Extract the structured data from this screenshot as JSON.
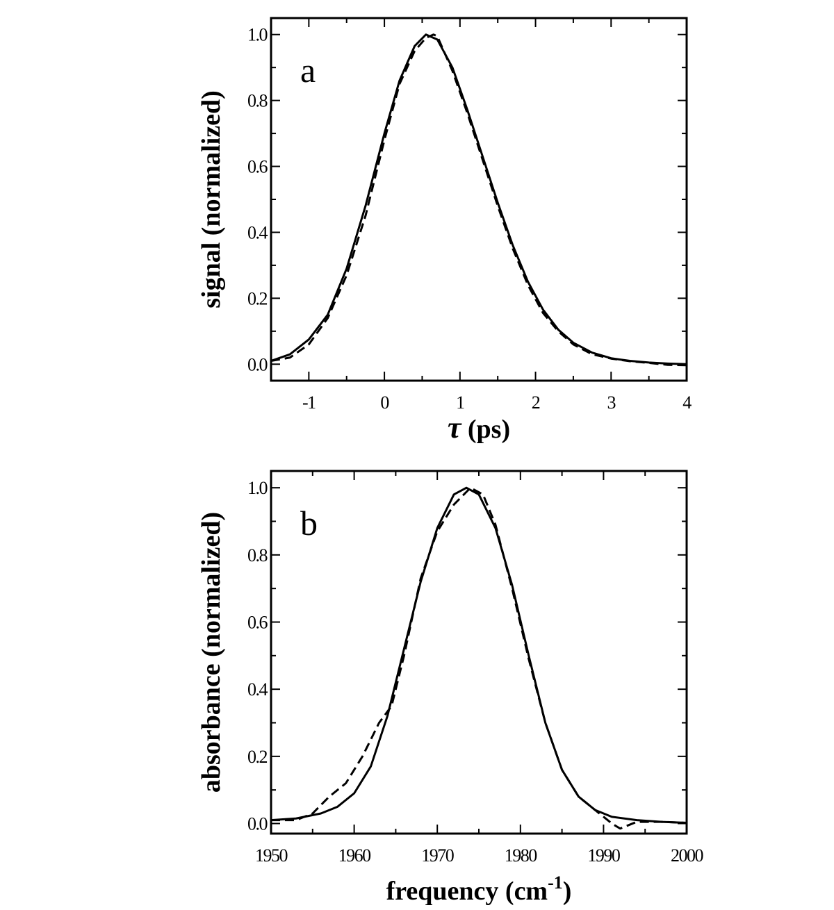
{
  "chart_data": [
    {
      "type": "line",
      "panel_label": "a",
      "xlabel_symbol": "τ",
      "xlabel_unit": " (ps)",
      "ylabel": "signal (normalized)",
      "xlim": [
        -1.5,
        4
      ],
      "ylim": [
        -0.05,
        1.05
      ],
      "xticks": [
        -1,
        0,
        1,
        2,
        3,
        4
      ],
      "xtick_labels": [
        "-1",
        "0",
        "1",
        "2",
        "3",
        "4"
      ],
      "yticks": [
        0.0,
        0.2,
        0.4,
        0.6,
        0.8,
        1.0
      ],
      "ytick_labels": [
        "0.0",
        "0.2",
        "0.4",
        "0.6",
        "0.8",
        "1.0"
      ],
      "x_minor_step": 0.5,
      "y_minor_step": 0.1,
      "grid": false,
      "legend": "none",
      "series": [
        {
          "style": "solid",
          "x": [
            -1.5,
            -1.25,
            -1.0,
            -0.75,
            -0.5,
            -0.25,
            0.0,
            0.2,
            0.4,
            0.55,
            0.7,
            0.9,
            1.1,
            1.3,
            1.5,
            1.7,
            1.9,
            2.1,
            2.3,
            2.5,
            2.75,
            3.0,
            3.25,
            3.5,
            3.75,
            4.0
          ],
          "y": [
            0.01,
            0.03,
            0.075,
            0.15,
            0.29,
            0.48,
            0.7,
            0.86,
            0.965,
            1.0,
            0.985,
            0.9,
            0.77,
            0.63,
            0.49,
            0.36,
            0.25,
            0.165,
            0.105,
            0.065,
            0.035,
            0.018,
            0.01,
            0.005,
            0.002,
            0.0
          ]
        },
        {
          "style": "dashed",
          "x": [
            -1.5,
            -1.25,
            -1.0,
            -0.75,
            -0.5,
            -0.25,
            0.0,
            0.2,
            0.4,
            0.55,
            0.65,
            0.7,
            0.9,
            1.1,
            1.3,
            1.5,
            1.7,
            1.9,
            2.1,
            2.3,
            2.5,
            2.75,
            3.0,
            3.25,
            3.5,
            3.75,
            4.0
          ],
          "y": [
            0.01,
            0.02,
            0.06,
            0.14,
            0.27,
            0.45,
            0.68,
            0.85,
            0.95,
            0.99,
            1.0,
            0.995,
            0.89,
            0.76,
            0.62,
            0.48,
            0.35,
            0.24,
            0.155,
            0.1,
            0.06,
            0.03,
            0.017,
            0.009,
            0.004,
            -0.002,
            -0.003
          ]
        }
      ]
    },
    {
      "type": "line",
      "panel_label": "b",
      "xlabel": "frequency (cm",
      "xlabel_superscript": "-1",
      "xlabel_close": ")",
      "ylabel": "absorbance (normalized)",
      "xlim": [
        1950,
        2000
      ],
      "ylim": [
        -0.03,
        1.05
      ],
      "xticks": [
        1950,
        1960,
        1970,
        1980,
        1990,
        2000
      ],
      "xtick_labels": [
        "1950",
        "1960",
        "1970",
        "1980",
        "1990",
        "2000"
      ],
      "yticks": [
        0.0,
        0.2,
        0.4,
        0.6,
        0.8,
        1.0
      ],
      "ytick_labels": [
        "0.0",
        "0.2",
        "0.4",
        "0.6",
        "0.8",
        "1.0"
      ],
      "x_minor_step": 5,
      "y_minor_step": 0.1,
      "grid": false,
      "legend": "none",
      "series": [
        {
          "style": "solid",
          "x": [
            1950,
            1953,
            1956,
            1958,
            1960,
            1962,
            1964,
            1966,
            1968,
            1970,
            1972,
            1973.5,
            1975,
            1977,
            1979,
            1981,
            1983,
            1985,
            1987,
            1989,
            1991,
            1994,
            1997,
            2000
          ],
          "y": [
            0.01,
            0.015,
            0.03,
            0.05,
            0.09,
            0.17,
            0.32,
            0.52,
            0.72,
            0.88,
            0.98,
            1.0,
            0.98,
            0.88,
            0.71,
            0.5,
            0.3,
            0.16,
            0.08,
            0.04,
            0.02,
            0.01,
            0.005,
            0.002
          ]
        },
        {
          "style": "dashed",
          "x": [
            1950,
            1953,
            1955,
            1957,
            1959,
            1961,
            1963,
            1964.5,
            1966,
            1968,
            1970,
            1972,
            1974,
            1975.5,
            1977,
            1979,
            1981,
            1983,
            1985,
            1987,
            1989,
            1990,
            1991,
            1992,
            1994,
            1997,
            2000
          ],
          "y": [
            0.01,
            0.01,
            0.03,
            0.08,
            0.12,
            0.2,
            0.3,
            0.35,
            0.5,
            0.73,
            0.87,
            0.95,
            1.0,
            0.98,
            0.89,
            0.7,
            0.49,
            0.3,
            0.16,
            0.08,
            0.04,
            0.02,
            0.0,
            -0.015,
            0.005,
            0.005,
            0.002
          ]
        }
      ]
    }
  ]
}
